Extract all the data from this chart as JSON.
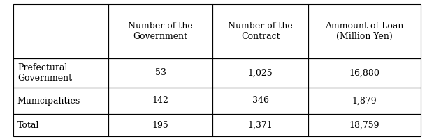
{
  "col_headers": [
    "Number of the\nGovernment",
    "Number of the\nContract",
    "Ammount of Loan\n(Million Yen)"
  ],
  "row_labels": [
    "Prefectural\nGovernment",
    "Municipalities",
    "Total"
  ],
  "cell_data": [
    [
      "53",
      "1,025",
      "16,880"
    ],
    [
      "142",
      "346",
      "1,879"
    ],
    [
      "195",
      "1,371",
      "18,759"
    ]
  ],
  "background_color": "#ffffff",
  "border_color": "#000000",
  "text_color": "#000000",
  "header_fontsize": 9,
  "cell_fontsize": 9,
  "fig_width": 6.21,
  "fig_height": 2.0
}
